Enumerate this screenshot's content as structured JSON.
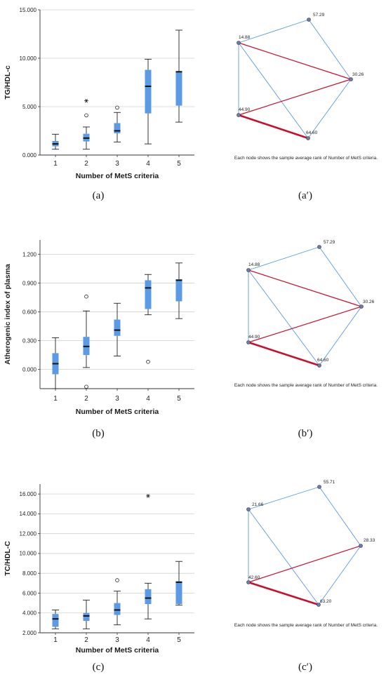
{
  "chart_data": [
    {
      "type": "box",
      "panel_label": "(a)",
      "ylabel": "TG/HDL-c",
      "xlabel": "Number of MetS criteria",
      "categories": [
        "1",
        "2",
        "3",
        "4",
        "5"
      ],
      "ylim": [
        0,
        15
      ],
      "yticks": [
        0,
        5,
        10,
        15
      ],
      "ytick_labels": [
        "0.000",
        "5.000",
        "10.000",
        "15.000"
      ],
      "grid": "horizontal",
      "color": "#5b9be6",
      "boxes": [
        {
          "category": "1",
          "min": 0.6,
          "q1": 0.9,
          "median": 1.15,
          "q3": 1.45,
          "max": 2.15,
          "outliers": []
        },
        {
          "category": "2",
          "min": 0.6,
          "q1": 1.4,
          "median": 1.75,
          "q3": 2.2,
          "max": 2.9,
          "outliers": [
            {
              "value": 4.1,
              "marker": "circle"
            },
            {
              "value": 5.6,
              "marker": "star"
            }
          ]
        },
        {
          "category": "3",
          "min": 1.35,
          "q1": 2.25,
          "median": 2.5,
          "q3": 3.3,
          "max": 4.4,
          "outliers": [
            {
              "value": 4.9,
              "marker": "circle"
            }
          ]
        },
        {
          "category": "4",
          "min": 1.15,
          "q1": 4.3,
          "median": 7.1,
          "q3": 8.8,
          "max": 9.9,
          "outliers": []
        },
        {
          "category": "5",
          "min": 3.4,
          "q1": 5.1,
          "median": 8.6,
          "q3": 8.65,
          "max": 12.9,
          "outliers": []
        }
      ]
    },
    {
      "type": "network",
      "panel_label": "(a′)",
      "caption": "Each node shows the sample average rank of Number of MetS criteria.",
      "nodes": [
        {
          "id": "n1",
          "label": "14.88"
        },
        {
          "id": "n2",
          "label": "57.29"
        },
        {
          "id": "n3",
          "label": "30.26"
        },
        {
          "id": "n4",
          "label": "64.60"
        },
        {
          "id": "n5",
          "label": "44.90"
        }
      ],
      "edges": [
        {
          "from": "n1",
          "to": "n2",
          "significant": false
        },
        {
          "from": "n2",
          "to": "n3",
          "significant": false
        },
        {
          "from": "n3",
          "to": "n4",
          "significant": false
        },
        {
          "from": "n1",
          "to": "n5",
          "significant": false
        },
        {
          "from": "n1",
          "to": "n4",
          "significant": false
        },
        {
          "from": "n1",
          "to": "n3",
          "significant": true
        },
        {
          "from": "n5",
          "to": "n3",
          "significant": true
        },
        {
          "from": "n5",
          "to": "n4",
          "significant": true,
          "emphasis": true
        }
      ]
    },
    {
      "type": "box",
      "panel_label": "(b)",
      "ylabel": "Atherogenic index of plasma",
      "xlabel": "Number of MetS criteria",
      "categories": [
        "1",
        "2",
        "3",
        "4",
        "5"
      ],
      "ylim": [
        -0.2,
        1.35
      ],
      "yticks": [
        0,
        0.3,
        0.6,
        0.9,
        1.2
      ],
      "ytick_labels": [
        "0.000",
        "0.300",
        "0.600",
        "0.900",
        "1.200"
      ],
      "grid": "horizontal",
      "color": "#5b9be6",
      "boxes": [
        {
          "category": "1",
          "min": -0.2,
          "q1": -0.05,
          "median": 0.06,
          "q3": 0.17,
          "max": 0.33,
          "outliers": []
        },
        {
          "category": "2",
          "min": 0.02,
          "q1": 0.15,
          "median": 0.24,
          "q3": 0.34,
          "max": 0.61,
          "outliers": [
            {
              "value": 0.76,
              "marker": "circle"
            },
            {
              "value": -0.18,
              "marker": "circle"
            }
          ]
        },
        {
          "category": "3",
          "min": 0.14,
          "q1": 0.35,
          "median": 0.41,
          "q3": 0.52,
          "max": 0.69,
          "outliers": []
        },
        {
          "category": "4",
          "min": 0.57,
          "q1": 0.63,
          "median": 0.85,
          "q3": 0.93,
          "max": 0.99,
          "outliers": [
            {
              "value": 0.08,
              "marker": "circle"
            }
          ]
        },
        {
          "category": "5",
          "min": 0.53,
          "q1": 0.71,
          "median": 0.93,
          "q3": 0.94,
          "max": 1.11,
          "outliers": []
        }
      ]
    },
    {
      "type": "network",
      "panel_label": "(b′)",
      "caption": "Each node shows the sample average rank of Number of MetS criteria.",
      "nodes": [
        {
          "id": "n1",
          "label": "14.88"
        },
        {
          "id": "n2",
          "label": "57.29"
        },
        {
          "id": "n3",
          "label": "30.26"
        },
        {
          "id": "n4",
          "label": "64.60"
        },
        {
          "id": "n5",
          "label": "44.90"
        }
      ],
      "edges": [
        {
          "from": "n1",
          "to": "n2",
          "significant": false
        },
        {
          "from": "n2",
          "to": "n3",
          "significant": false
        },
        {
          "from": "n3",
          "to": "n4",
          "significant": false
        },
        {
          "from": "n1",
          "to": "n5",
          "significant": false
        },
        {
          "from": "n1",
          "to": "n4",
          "significant": false
        },
        {
          "from": "n1",
          "to": "n3",
          "significant": true
        },
        {
          "from": "n5",
          "to": "n3",
          "significant": true
        },
        {
          "from": "n5",
          "to": "n4",
          "significant": true,
          "emphasis": true
        }
      ]
    },
    {
      "type": "box",
      "panel_label": "(c)",
      "ylabel": "TC/HDL-C",
      "xlabel": "Number of MetS criteria",
      "categories": [
        "1",
        "2",
        "3",
        "4",
        "5"
      ],
      "ylim": [
        2,
        17
      ],
      "yticks": [
        2,
        4,
        6,
        8,
        10,
        12,
        14,
        16
      ],
      "ytick_labels": [
        "2.000",
        "4.000",
        "6.000",
        "8.000",
        "10.000",
        "12.000",
        "14.000",
        "16.000"
      ],
      "grid": "horizontal",
      "color": "#5b9be6",
      "boxes": [
        {
          "category": "1",
          "min": 2.4,
          "q1": 2.6,
          "median": 3.4,
          "q3": 3.9,
          "max": 4.3,
          "outliers": []
        },
        {
          "category": "2",
          "min": 2.4,
          "q1": 3.2,
          "median": 3.7,
          "q3": 4.0,
          "max": 5.3,
          "outliers": []
        },
        {
          "category": "3",
          "min": 2.8,
          "q1": 3.8,
          "median": 4.3,
          "q3": 5.0,
          "max": 6.2,
          "outliers": [
            {
              "value": 7.3,
              "marker": "circle"
            }
          ]
        },
        {
          "category": "4",
          "min": 3.4,
          "q1": 4.9,
          "median": 5.5,
          "q3": 6.4,
          "max": 7.0,
          "outliers": [
            {
              "value": 15.8,
              "marker": "star"
            }
          ]
        },
        {
          "category": "5",
          "min": 4.8,
          "q1": 4.9,
          "median": 7.1,
          "q3": 7.2,
          "max": 9.2,
          "outliers": []
        }
      ]
    },
    {
      "type": "network",
      "panel_label": "(c′)",
      "caption": "Each node shows the sample average rank of Number of MetS criteria.",
      "nodes": [
        {
          "id": "n1",
          "label": "21.66"
        },
        {
          "id": "n2",
          "label": "55.71"
        },
        {
          "id": "n3",
          "label": "28.33"
        },
        {
          "id": "n4",
          "label": "63.20"
        },
        {
          "id": "n5",
          "label": "42.60"
        }
      ],
      "edges": [
        {
          "from": "n1",
          "to": "n2",
          "significant": false
        },
        {
          "from": "n2",
          "to": "n3",
          "significant": false
        },
        {
          "from": "n3",
          "to": "n4",
          "significant": false
        },
        {
          "from": "n1",
          "to": "n5",
          "significant": false
        },
        {
          "from": "n1",
          "to": "n4",
          "significant": false
        },
        {
          "from": "n5",
          "to": "n3",
          "significant": true
        },
        {
          "from": "n5",
          "to": "n4",
          "significant": true,
          "emphasis": true
        }
      ]
    }
  ],
  "colors": {
    "box_fill": "#5b9be6",
    "edge_normal": "#5b9bd5",
    "edge_significant": "#c8102e",
    "node_fill": "#6f7cae",
    "grid": "#d0d0d0"
  }
}
